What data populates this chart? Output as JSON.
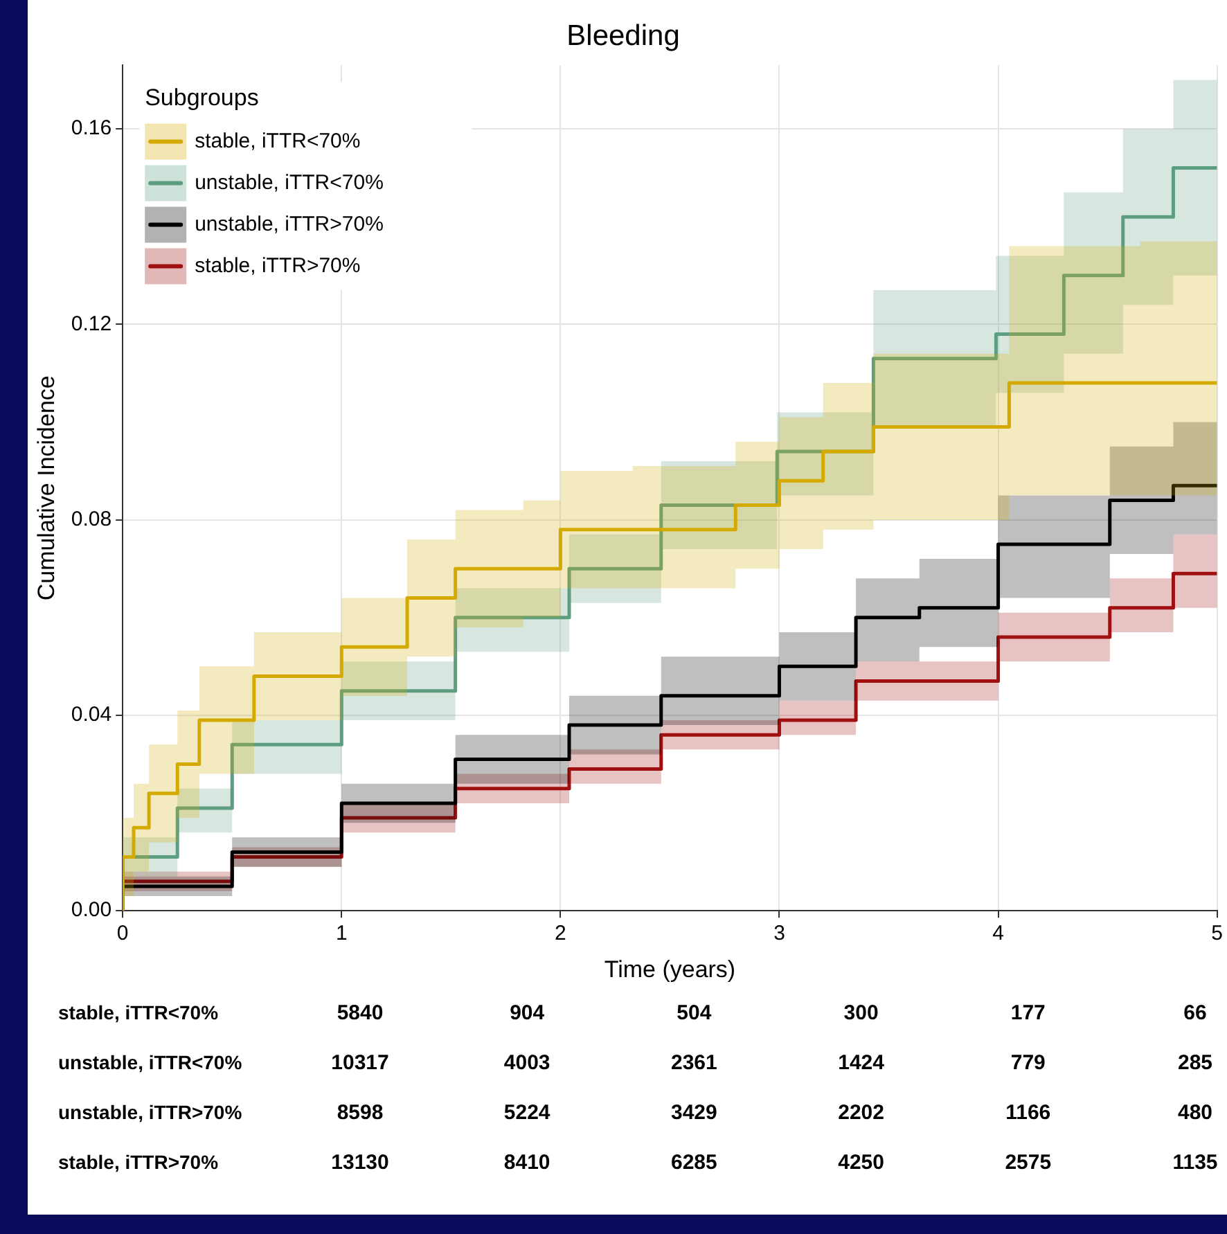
{
  "chart_data": {
    "type": "step",
    "title": "Bleeding",
    "xlabel": "Time (years)",
    "ylabel": "Cumulative Incidence",
    "legend_title": "Subgroups",
    "legend": "top left",
    "grid": true,
    "xlim": [
      0,
      5
    ],
    "xticks": [
      0,
      1,
      2,
      3,
      4,
      5
    ],
    "ylim": [
      0,
      0.173
    ],
    "yticks": [
      {
        "value": 0,
        "label": "0.00"
      },
      {
        "value": 0.04,
        "label": "0.04"
      },
      {
        "value": 0.08,
        "label": "0.08"
      },
      {
        "value": 0.12,
        "label": "0.12"
      },
      {
        "value": 0.16,
        "label": "0.16"
      }
    ],
    "series": [
      {
        "name": "stable, iTTR<70%",
        "color": "#d4aa00",
        "x": [
          0,
          0.05,
          0.12,
          0.25,
          0.35,
          0.6,
          1.0,
          1.3,
          1.52,
          1.83,
          2.0,
          2.33,
          2.8,
          3.0,
          3.2,
          3.43,
          4.05,
          4.65,
          5.0
        ],
        "values": [
          0,
          0.011,
          0.017,
          0.024,
          0.03,
          0.039,
          0.048,
          0.054,
          0.064,
          0.07,
          0.07,
          0.078,
          0.078,
          0.083,
          0.088,
          0.094,
          0.099,
          0.108,
          0.108
        ],
        "lower": [
          0,
          0.003,
          0.008,
          0.014,
          0.019,
          0.028,
          0.039,
          0.044,
          0.052,
          0.058,
          0.06,
          0.066,
          0.066,
          0.07,
          0.074,
          0.078,
          0.08,
          0.085,
          0.085
        ],
        "upper": [
          0,
          0.019,
          0.026,
          0.034,
          0.041,
          0.05,
          0.057,
          0.064,
          0.076,
          0.082,
          0.084,
          0.09,
          0.091,
          0.096,
          0.101,
          0.108,
          0.114,
          0.136,
          0.137
        ]
      },
      {
        "name": "unstable, iTTR<70%",
        "color": "#5e9e80",
        "x": [
          0,
          0.25,
          0.5,
          1.0,
          1.52,
          2.04,
          2.46,
          2.99,
          3.43,
          3.99,
          4.3,
          4.57,
          4.8,
          5.0
        ],
        "values": [
          0,
          0.011,
          0.021,
          0.034,
          0.045,
          0.06,
          0.07,
          0.083,
          0.094,
          0.113,
          0.118,
          0.13,
          0.142,
          0.152
        ],
        "lower": [
          0,
          0.007,
          0.016,
          0.028,
          0.039,
          0.053,
          0.063,
          0.074,
          0.085,
          0.099,
          0.106,
          0.114,
          0.124,
          0.13
        ],
        "upper": [
          0,
          0.015,
          0.025,
          0.039,
          0.051,
          0.066,
          0.077,
          0.092,
          0.102,
          0.127,
          0.134,
          0.147,
          0.16,
          0.17
        ]
      },
      {
        "name": "unstable, iTTR>70%",
        "color": "#000000",
        "x": [
          0,
          0.5,
          1.0,
          1.52,
          2.04,
          2.46,
          3.0,
          3.35,
          3.64,
          4.0,
          4.51,
          4.8,
          5.0
        ],
        "values": [
          0,
          0.005,
          0.012,
          0.022,
          0.031,
          0.038,
          0.044,
          0.05,
          0.06,
          0.062,
          0.075,
          0.084,
          0.087
        ],
        "lower": [
          0,
          0.003,
          0.009,
          0.018,
          0.026,
          0.032,
          0.038,
          0.043,
          0.051,
          0.054,
          0.064,
          0.073,
          0.077
        ],
        "upper": [
          0,
          0.007,
          0.015,
          0.026,
          0.036,
          0.044,
          0.052,
          0.057,
          0.068,
          0.072,
          0.085,
          0.095,
          0.1
        ]
      },
      {
        "name": "stable, iTTR>70%",
        "color": "#a01010",
        "x": [
          0,
          0.5,
          1.0,
          1.52,
          2.04,
          2.46,
          3.0,
          3.35,
          4.0,
          4.51,
          4.8,
          5.0
        ],
        "values": [
          0,
          0.006,
          0.011,
          0.019,
          0.025,
          0.029,
          0.036,
          0.039,
          0.047,
          0.056,
          0.062,
          0.069
        ],
        "lower": [
          0,
          0.004,
          0.009,
          0.016,
          0.022,
          0.026,
          0.033,
          0.036,
          0.043,
          0.051,
          0.057,
          0.062
        ],
        "upper": [
          0,
          0.008,
          0.013,
          0.022,
          0.028,
          0.033,
          0.039,
          0.043,
          0.051,
          0.061,
          0.068,
          0.077
        ]
      }
    ],
    "annotations": [
      "stable, iTTR<70%",
      "5840",
      "904",
      "504",
      "300",
      "177",
      "66",
      "unstable, iTTR<70%",
      "10317",
      "4003",
      "2361",
      "1424",
      "779",
      "285",
      "unstable, iTTR>70%",
      "8598",
      "5224",
      "3429",
      "2202",
      "1166",
      "480",
      "stable, iTTR>70%",
      "13130",
      "8410",
      "6285",
      "4250",
      "2575",
      "1135"
    ]
  }
}
